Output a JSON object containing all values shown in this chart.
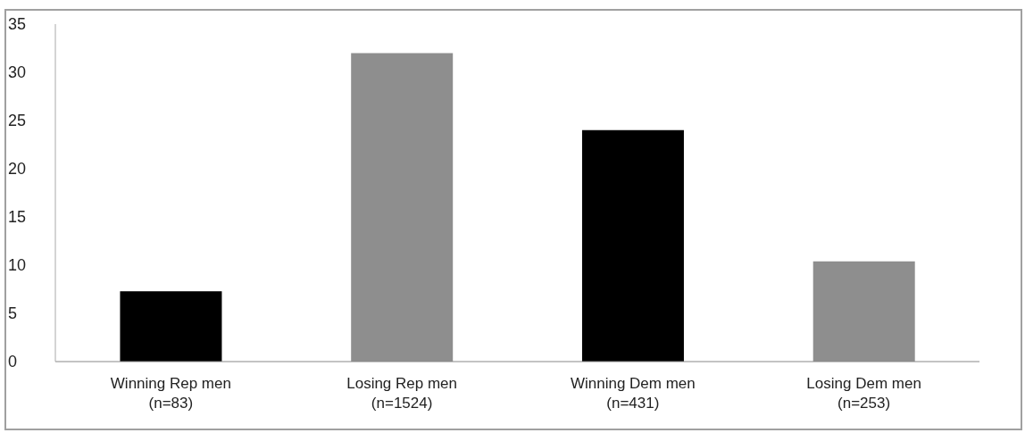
{
  "chart_data": {
    "type": "bar",
    "categories": [
      "Winning Rep men\n(n=83)",
      "Losing Rep men\n(n=1524)",
      "Winning Dem men\n(n=431)",
      "Losing Dem men\n(n=253)"
    ],
    "values": [
      7.3,
      32,
      24,
      10.4
    ],
    "colors": [
      "#000000",
      "#8e8e8e",
      "#000000",
      "#8e8e8e"
    ],
    "ylim": [
      0,
      35
    ],
    "yticks": [
      0,
      5,
      10,
      15,
      20,
      25,
      30,
      35
    ],
    "grid": false
  }
}
